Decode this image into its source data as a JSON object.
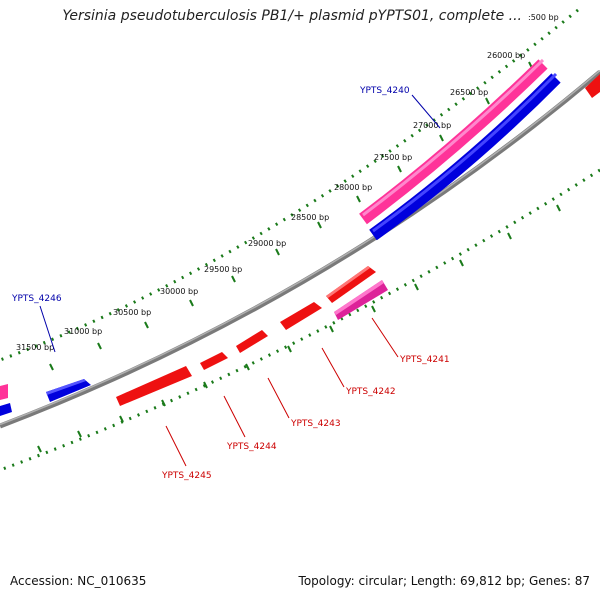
{
  "title": "Yersinia pseudotuberculosis PB1/+ plasmid pYPTS01, complete ...",
  "footer": {
    "accession_label": "Accession: NC_010635",
    "summary_label": "Topology: circular; Length: 69,812 bp; Genes: 87"
  },
  "colors": {
    "backbone": "#808080",
    "tick": "#1a7a1a",
    "forward_gene": "#ff3399",
    "reverse_gene": "#0000dd",
    "red_gene": "#ee1111",
    "magenta_gene": "#dd2299",
    "label_blue": "#0000aa",
    "label_red": "#cc0000"
  },
  "map": {
    "scale_labels": [
      "26000 bp",
      "26500 bp",
      "27000 bp",
      "27500 bp",
      "28000 bp",
      "28500 bp",
      "29000 bp",
      "29500 bp",
      "30000 bp",
      "30500 bp",
      "31000 bp",
      "31500 bp"
    ],
    "clipped_scale_label": ":500 bp",
    "gene_labels": {
      "ypts_4240": "YPTS_4240",
      "ypts_4246": "YPTS_4246",
      "ypts_4241": "YPTS_4241",
      "ypts_4242": "YPTS_4242",
      "ypts_4243": "YPTS_4243",
      "ypts_4244": "YPTS_4244",
      "ypts_4245": "YPTS_4245"
    }
  }
}
